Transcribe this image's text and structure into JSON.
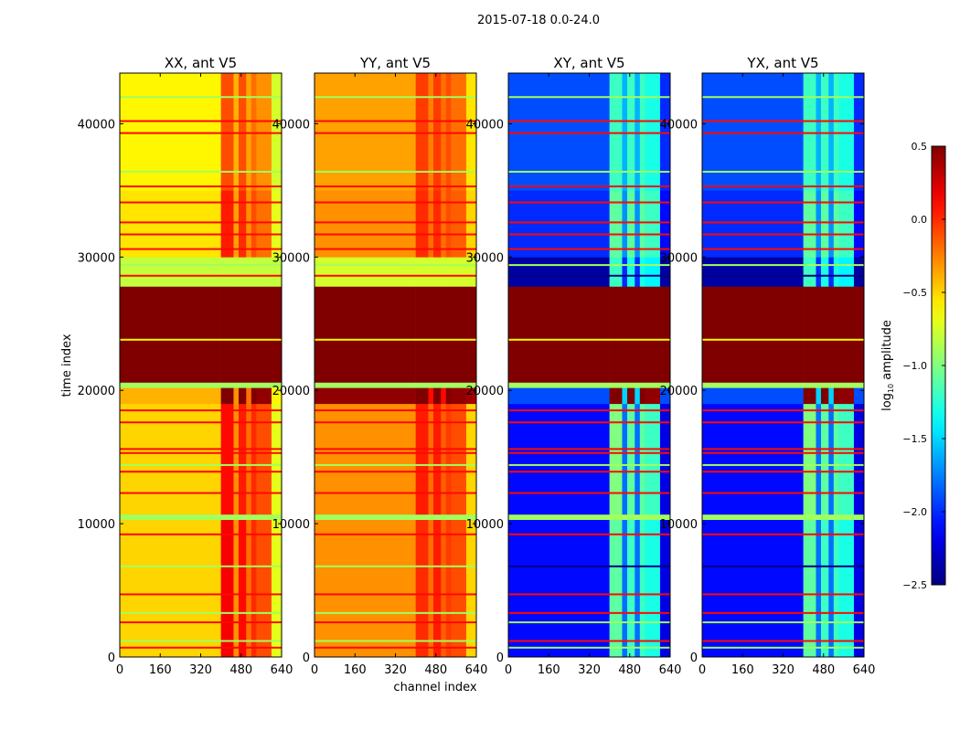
{
  "chart_data": {
    "type": "heatmap",
    "suptitle": "2015-07-18 0.0-24.0",
    "xlabel": "channel index",
    "ylabel": "time index",
    "xlim": [
      0,
      640
    ],
    "ylim": [
      0,
      43800
    ],
    "xticks": [
      "0",
      "160",
      "320",
      "480",
      "640"
    ],
    "xtick_values": [
      0,
      160,
      320,
      480,
      640
    ],
    "yticks": [
      "0",
      "10000",
      "20000",
      "30000",
      "40000"
    ],
    "ytick_values": [
      0,
      10000,
      20000,
      30000,
      40000
    ],
    "colorbar": {
      "label_prefix": "log",
      "label_sub": "10",
      "label_suffix": " amplitude",
      "colormap": "jet",
      "range": [
        -2.5,
        0.5
      ],
      "ticks": [
        "0.5",
        "0.0",
        "−0.5",
        "−1.0",
        "−1.5",
        "−2.0",
        "−2.5"
      ],
      "tick_values": [
        0.5,
        0.0,
        -0.5,
        -1.0,
        -1.5,
        -2.0,
        -2.5
      ]
    },
    "channel_bins": [
      0,
      400,
      450,
      470,
      500,
      520,
      540,
      600,
      640
    ],
    "time_bins": [
      0,
      10300,
      10700,
      19000,
      20200,
      20600,
      27800,
      30000,
      35000,
      43800
    ],
    "flag_times": [
      700,
      1200,
      2600,
      3300,
      4700,
      6800,
      9200,
      12300,
      13900,
      14400,
      15300,
      15600,
      17600,
      18500,
      23800,
      28600,
      29400,
      30600,
      31700,
      32600,
      34100,
      35300,
      36400,
      39300,
      40200,
      42000
    ],
    "panels": [
      {
        "title": "XX, ant V5",
        "values": [
          [
            -0.5,
            0.15,
            -0.3,
            0.1,
            -0.2,
            0.0,
            -0.1,
            -0.7
          ],
          [
            -0.9,
            -0.9,
            -0.9,
            -0.9,
            -0.9,
            -0.9,
            -0.9,
            -0.9
          ],
          [
            -0.5,
            0.1,
            -0.3,
            0.05,
            -0.2,
            0.0,
            -0.1,
            -0.7
          ],
          [
            -0.4,
            0.5,
            -0.3,
            0.5,
            -0.2,
            0.5,
            0.45,
            -0.6
          ],
          [
            -0.9,
            -0.9,
            -0.9,
            -0.9,
            -0.9,
            -0.9,
            -0.9,
            -0.9
          ],
          [
            0.5,
            0.5,
            0.5,
            0.5,
            0.5,
            0.5,
            0.5,
            0.5
          ],
          [
            -0.8,
            -0.8,
            -0.8,
            -0.8,
            -0.8,
            -0.8,
            -0.8,
            -0.8
          ],
          [
            -0.55,
            0.05,
            -0.35,
            0.0,
            -0.3,
            -0.1,
            -0.2,
            -0.7
          ],
          [
            -0.6,
            -0.1,
            -0.4,
            -0.1,
            -0.35,
            -0.2,
            -0.3,
            -0.75
          ]
        ],
        "flag_values": [
          0.1,
          -0.9,
          0.1,
          -0.9,
          0.1,
          -0.9,
          0.1,
          0.1,
          0.1,
          -0.9,
          0.1,
          0.1,
          0.1,
          0.1,
          -0.6,
          0.1,
          -0.9,
          0.1,
          0.1,
          0.1,
          0.1,
          0.1,
          -0.9,
          0.1,
          0.1,
          -0.9
        ]
      },
      {
        "title": "YY, ant V5",
        "values": [
          [
            -0.3,
            0.0,
            -0.2,
            0.05,
            -0.15,
            -0.05,
            -0.1,
            -0.5
          ],
          [
            -0.9,
            -0.9,
            -0.9,
            -0.9,
            -0.9,
            -0.9,
            -0.9,
            -0.9
          ],
          [
            -0.3,
            0.05,
            -0.2,
            0.05,
            -0.15,
            -0.05,
            -0.1,
            -0.5
          ],
          [
            0.45,
            0.5,
            0.1,
            0.5,
            0.1,
            0.5,
            0.45,
            0.4
          ],
          [
            -0.9,
            -0.9,
            -0.9,
            -0.9,
            -0.9,
            -0.9,
            -0.9,
            -0.9
          ],
          [
            0.5,
            0.5,
            0.5,
            0.5,
            0.5,
            0.5,
            0.5,
            0.5
          ],
          [
            -0.75,
            -0.75,
            -0.75,
            -0.75,
            -0.75,
            -0.75,
            -0.75,
            -0.75
          ],
          [
            -0.3,
            0.0,
            -0.2,
            0.0,
            -0.2,
            -0.1,
            -0.15,
            -0.5
          ],
          [
            -0.35,
            -0.05,
            -0.25,
            -0.05,
            -0.2,
            -0.1,
            -0.2,
            -0.55
          ]
        ],
        "flag_values": [
          0.1,
          -0.9,
          0.1,
          -0.9,
          0.1,
          -0.9,
          0.1,
          0.1,
          0.1,
          -0.9,
          0.1,
          0.1,
          0.1,
          0.1,
          -0.6,
          0.1,
          -0.9,
          0.1,
          0.1,
          0.1,
          0.1,
          0.1,
          -0.9,
          0.1,
          0.1,
          -0.9
        ]
      },
      {
        "title": "XY, ant V5",
        "values": [
          [
            -2.1,
            -1.1,
            -1.8,
            -1.2,
            -1.8,
            -1.2,
            -1.3,
            -2.2
          ],
          [
            -0.9,
            -0.9,
            -0.9,
            -0.9,
            -0.9,
            -0.9,
            -0.9,
            -0.9
          ],
          [
            -2.1,
            -1.0,
            -1.8,
            -1.1,
            -1.8,
            -1.1,
            -1.2,
            -2.2
          ],
          [
            -1.9,
            0.5,
            -1.5,
            0.5,
            -1.5,
            0.5,
            0.45,
            -1.9
          ],
          [
            -0.9,
            -0.9,
            -0.9,
            -0.9,
            -0.9,
            -0.9,
            -0.9,
            -0.9
          ],
          [
            0.5,
            0.5,
            0.5,
            0.5,
            0.5,
            0.5,
            0.5,
            0.5
          ],
          [
            -2.4,
            -1.2,
            -2.0,
            -1.3,
            -2.0,
            -1.3,
            -1.4,
            -2.4
          ],
          [
            -2.0,
            -1.1,
            -1.7,
            -1.1,
            -1.7,
            -1.1,
            -1.2,
            -2.1
          ],
          [
            -1.9,
            -1.2,
            -1.6,
            -1.2,
            -1.6,
            -1.2,
            -1.3,
            -2.0
          ]
        ],
        "flag_values": [
          -0.9,
          0.1,
          -0.9,
          0.1,
          0.1,
          -2.6,
          0.1,
          0.1,
          0.1,
          -0.9,
          0.1,
          0.1,
          0.1,
          0.1,
          -0.6,
          -2.5,
          -0.9,
          0.1,
          0.1,
          0.1,
          0.1,
          0.1,
          -0.9,
          0.1,
          0.1,
          -0.9
        ]
      },
      {
        "title": "YX, ant V5",
        "values": [
          [
            -2.1,
            -1.1,
            -1.8,
            -1.2,
            -1.8,
            -1.2,
            -1.3,
            -2.2
          ],
          [
            -0.9,
            -0.9,
            -0.9,
            -0.9,
            -0.9,
            -0.9,
            -0.9,
            -0.9
          ],
          [
            -2.1,
            -1.0,
            -1.8,
            -1.1,
            -1.8,
            -1.1,
            -1.2,
            -2.2
          ],
          [
            -1.9,
            0.5,
            -1.5,
            0.5,
            -1.5,
            0.5,
            0.45,
            -1.9
          ],
          [
            -0.9,
            -0.9,
            -0.9,
            -0.9,
            -0.9,
            -0.9,
            -0.9,
            -0.9
          ],
          [
            0.5,
            0.5,
            0.5,
            0.5,
            0.5,
            0.5,
            0.5,
            0.5
          ],
          [
            -2.4,
            -1.2,
            -2.0,
            -1.3,
            -2.0,
            -1.3,
            -1.4,
            -2.4
          ],
          [
            -2.0,
            -1.1,
            -1.7,
            -1.1,
            -1.7,
            -1.1,
            -1.2,
            -2.1
          ],
          [
            -1.9,
            -1.2,
            -1.6,
            -1.2,
            -1.6,
            -1.2,
            -1.3,
            -2.0
          ]
        ],
        "flag_values": [
          -0.9,
          0.1,
          -0.9,
          0.1,
          0.1,
          -2.6,
          0.1,
          0.1,
          0.1,
          -0.9,
          0.1,
          0.1,
          0.1,
          0.1,
          -0.6,
          -2.5,
          -0.9,
          0.1,
          0.1,
          0.1,
          0.1,
          0.1,
          -0.9,
          0.1,
          0.1,
          -0.9
        ]
      }
    ]
  }
}
